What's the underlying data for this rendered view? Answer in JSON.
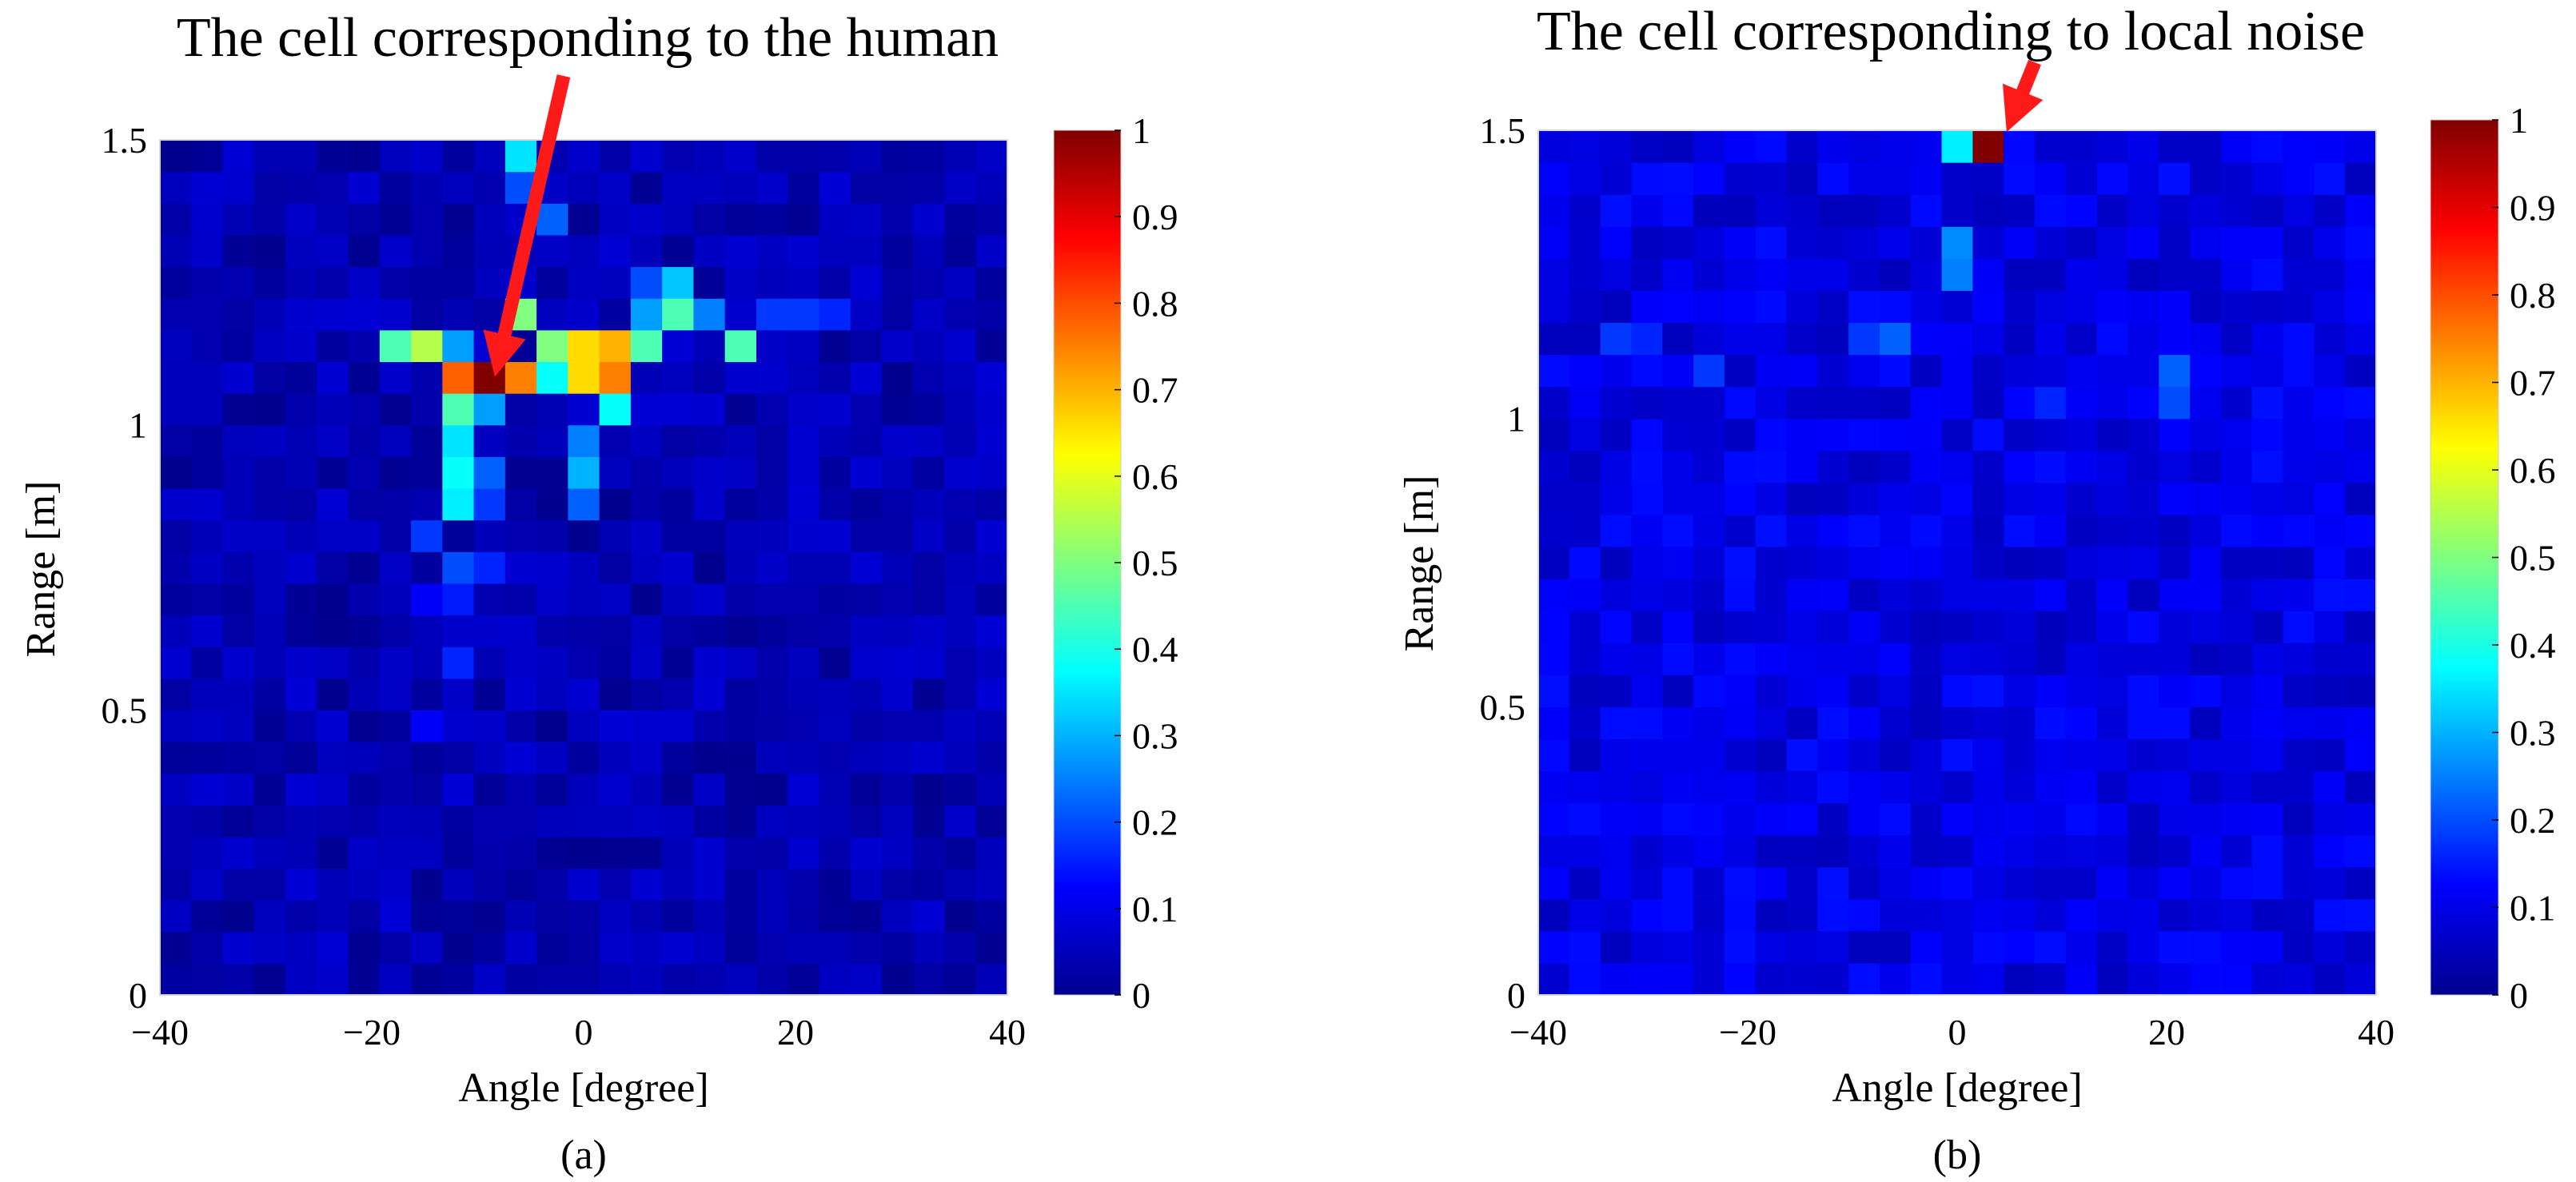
{
  "colors": {
    "colormap": "jet",
    "arrow": "#ff1a1a",
    "cell_edge": "none"
  },
  "chart_data": [
    {
      "type": "heatmap",
      "panel_label": "(a)",
      "annotation": "The cell corresponding to the human",
      "xlabel": "Angle [degree]",
      "ylabel": "Range [m]",
      "xlim": [
        -40,
        40
      ],
      "ylim": [
        0,
        1.5
      ],
      "x_ticks": [
        "−40",
        "−20",
        "0",
        "20",
        "40"
      ],
      "y_ticks": [
        "0",
        "0.5",
        "1",
        "1.5"
      ],
      "colorbar_ticks": [
        "0",
        "0.1",
        "0.2",
        "0.3",
        "0.4",
        "0.5",
        "0.6",
        "0.7",
        "0.8",
        "0.9",
        "1"
      ],
      "clim": [
        0,
        1
      ],
      "grid": "27x27 cells, angle -40..40 deg, range 0..1.5 m",
      "background_level": 0.05,
      "highlight": {
        "angle": -8,
        "range": 1.07,
        "value": 1.0
      },
      "cells": [
        {
          "angle": -8,
          "range": 1.07,
          "value": 1.0
        },
        {
          "angle": -11,
          "range": 1.07,
          "value": 0.78
        },
        {
          "angle": -5,
          "range": 1.07,
          "value": 0.75
        },
        {
          "angle": -2,
          "range": 1.07,
          "value": 0.38
        },
        {
          "angle": 1,
          "range": 1.07,
          "value": 0.66
        },
        {
          "angle": 4,
          "range": 1.07,
          "value": 0.75
        },
        {
          "angle": 1,
          "range": 1.12,
          "value": 0.66
        },
        {
          "angle": -2,
          "range": 1.12,
          "value": 0.5
        },
        {
          "angle": 4,
          "range": 1.12,
          "value": 0.7
        },
        {
          "angle": 7,
          "range": 1.12,
          "value": 0.45
        },
        {
          "angle": 7,
          "range": 1.18,
          "value": 0.62
        },
        {
          "angle": 10,
          "range": 1.18,
          "value": 0.5
        },
        {
          "angle": 10,
          "range": 1.22,
          "value": 0.45
        },
        {
          "angle": 10,
          "range": 1.27,
          "value": 0.32
        },
        {
          "angle": 16,
          "range": 1.12,
          "value": 0.45
        },
        {
          "angle": -5,
          "range": 1.22,
          "value": 0.5
        },
        {
          "angle": -17,
          "range": 1.12,
          "value": 0.45
        },
        {
          "angle": -14,
          "range": 1.12,
          "value": 0.55
        },
        {
          "angle": -11,
          "range": 1.12,
          "value": 0.28
        },
        {
          "angle": -11,
          "range": 1.02,
          "value": 0.45
        },
        {
          "angle": -11,
          "range": 0.97,
          "value": 0.35
        },
        {
          "angle": -11,
          "range": 0.92,
          "value": 0.38
        },
        {
          "angle": -11,
          "range": 0.87,
          "value": 0.36
        },
        {
          "angle": -8,
          "range": 1.02,
          "value": 0.28
        },
        {
          "angle": -8,
          "range": 0.92,
          "value": 0.22
        },
        {
          "angle": -8,
          "range": 0.87,
          "value": 0.18
        },
        {
          "angle": -8,
          "range": 0.77,
          "value": 0.16
        },
        {
          "angle": 4,
          "range": 1.02,
          "value": 0.38
        },
        {
          "angle": 1,
          "range": 0.97,
          "value": 0.25
        },
        {
          "angle": 1,
          "range": 0.92,
          "value": 0.3
        },
        {
          "angle": 1,
          "range": 0.87,
          "value": 0.22
        },
        {
          "angle": -5,
          "range": 1.45,
          "value": 0.35
        },
        {
          "angle": -5,
          "range": 1.4,
          "value": 0.2
        },
        {
          "angle": -2,
          "range": 1.35,
          "value": 0.22
        },
        {
          "angle": 7,
          "range": 1.27,
          "value": 0.2
        },
        {
          "angle": 7,
          "range": 1.22,
          "value": 0.28
        },
        {
          "angle": 13,
          "range": 1.22,
          "value": 0.25
        },
        {
          "angle": 19,
          "range": 1.22,
          "value": 0.18
        },
        {
          "angle": 22,
          "range": 1.17,
          "value": 0.18
        },
        {
          "angle": 25,
          "range": 1.22,
          "value": 0.16
        },
        {
          "angle": -14,
          "range": 0.82,
          "value": 0.18
        },
        {
          "angle": -14,
          "range": 0.72,
          "value": 0.15
        },
        {
          "angle": -11,
          "range": 0.77,
          "value": 0.2
        },
        {
          "angle": -11,
          "range": 0.67,
          "value": 0.15
        },
        {
          "angle": -14,
          "range": 0.67,
          "value": 0.12
        },
        {
          "angle": -11,
          "range": 0.57,
          "value": 0.16
        },
        {
          "angle": -14,
          "range": 0.47,
          "value": 0.12
        }
      ]
    },
    {
      "type": "heatmap",
      "panel_label": "(b)",
      "annotation": "The cell corresponding to local noise",
      "xlabel": "Angle [degree]",
      "ylabel": "Range [m]",
      "xlim": [
        -40,
        40
      ],
      "ylim": [
        0,
        1.5
      ],
      "x_ticks": [
        "−40",
        "−20",
        "0",
        "20",
        "40"
      ],
      "y_ticks": [
        "0",
        "0.5",
        "1",
        "1.5"
      ],
      "colorbar_ticks": [
        "0",
        "0.1",
        "0.2",
        "0.3",
        "0.4",
        "0.5",
        "0.6",
        "0.7",
        "0.8",
        "0.9",
        "1"
      ],
      "clim": [
        0,
        1
      ],
      "grid": "27x27 cells, angle -40..40 deg, range 0..1.5 m",
      "background_level": 0.1,
      "highlight": {
        "angle": 4,
        "range": 1.47,
        "value": 1.0
      },
      "cells": [
        {
          "angle": 4,
          "range": 1.47,
          "value": 1.0
        },
        {
          "angle": 1,
          "range": 1.47,
          "value": 0.36
        },
        {
          "angle": 1,
          "range": 1.32,
          "value": 0.26
        },
        {
          "angle": 1,
          "range": 1.27,
          "value": 0.25
        },
        {
          "angle": -5,
          "range": 1.12,
          "value": 0.22
        },
        {
          "angle": -8,
          "range": 1.12,
          "value": 0.18
        },
        {
          "angle": -23,
          "range": 1.07,
          "value": 0.18
        },
        {
          "angle": 22,
          "range": 1.07,
          "value": 0.22
        },
        {
          "angle": 22,
          "range": 1.02,
          "value": 0.2
        },
        {
          "angle": 10,
          "range": 1.0,
          "value": 0.16
        },
        {
          "angle": -32,
          "range": 1.12,
          "value": 0.18
        },
        {
          "angle": -29,
          "range": 1.12,
          "value": 0.16
        }
      ]
    }
  ]
}
